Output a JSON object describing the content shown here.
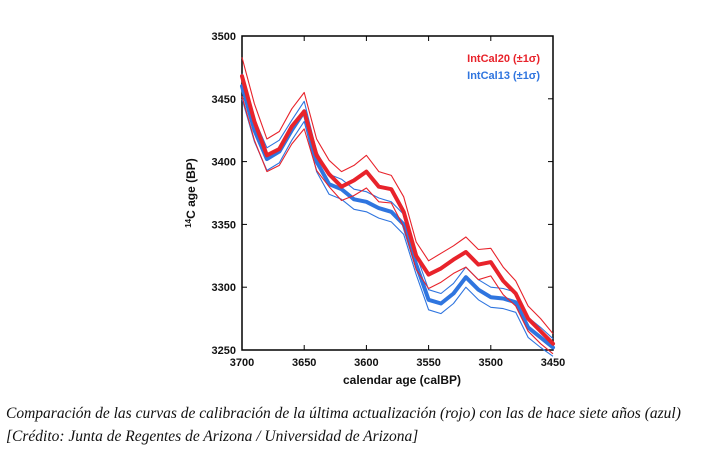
{
  "caption": "Comparación de las curvas de calibración de la última actualización (rojo) con las de hace siete años (azul) [Crédito: Junta de Regentes de Arizona / Universidad de Arizona]",
  "chart_data": {
    "type": "line",
    "title": "",
    "xlabel": "calendar age (calBP)",
    "ylabel_superscript": "14",
    "ylabel": "C age (BP)",
    "xlim": [
      3700,
      3450
    ],
    "ylim": [
      3250,
      3500
    ],
    "xticks": [
      3700,
      3650,
      3600,
      3550,
      3500,
      3450
    ],
    "yticks": [
      3250,
      3300,
      3350,
      3400,
      3450,
      3500
    ],
    "xtick_labels": [
      "3700",
      "3650",
      "3600",
      "3550",
      "3500",
      "3450"
    ],
    "ytick_labels": [
      "3250",
      "3300",
      "3350",
      "3400",
      "3450",
      "3500"
    ],
    "legend_position": "top-right",
    "x": [
      3700,
      3690,
      3680,
      3670,
      3660,
      3650,
      3640,
      3630,
      3620,
      3610,
      3600,
      3590,
      3580,
      3570,
      3560,
      3550,
      3540,
      3530,
      3520,
      3510,
      3500,
      3490,
      3480,
      3470,
      3460,
      3450
    ],
    "series": [
      {
        "name": "IntCal20",
        "legend_label": "IntCal20 (±1σ)",
        "color": "#e8232b",
        "values": [
          3468,
          3432,
          3405,
          3410,
          3428,
          3440,
          3405,
          3390,
          3380,
          3385,
          3392,
          3380,
          3378,
          3360,
          3325,
          3310,
          3315,
          3322,
          3328,
          3318,
          3320,
          3305,
          3295,
          3275,
          3265,
          3255
        ],
        "upper": [
          3483,
          3446,
          3418,
          3424,
          3442,
          3455,
          3418,
          3401,
          3392,
          3397,
          3405,
          3392,
          3389,
          3372,
          3336,
          3321,
          3327,
          3333,
          3340,
          3330,
          3331,
          3316,
          3305,
          3285,
          3275,
          3263
        ],
        "lower": [
          3452,
          3417,
          3392,
          3397,
          3414,
          3426,
          3393,
          3380,
          3369,
          3373,
          3379,
          3368,
          3367,
          3348,
          3314,
          3299,
          3304,
          3311,
          3316,
          3306,
          3309,
          3294,
          3285,
          3265,
          3255,
          3247
        ]
      },
      {
        "name": "IntCal13",
        "legend_label": "IntCal13 (±1σ)",
        "color": "#2f75df",
        "values": [
          3460,
          3425,
          3402,
          3408,
          3425,
          3440,
          3400,
          3382,
          3378,
          3370,
          3368,
          3363,
          3360,
          3350,
          3318,
          3290,
          3287,
          3295,
          3308,
          3298,
          3292,
          3291,
          3288,
          3268,
          3260,
          3252
        ],
        "upper": [
          3470,
          3434,
          3411,
          3417,
          3433,
          3448,
          3408,
          3390,
          3386,
          3378,
          3376,
          3371,
          3368,
          3358,
          3326,
          3298,
          3295,
          3303,
          3316,
          3306,
          3300,
          3299,
          3296,
          3276,
          3268,
          3259
        ],
        "lower": [
          3450,
          3416,
          3393,
          3399,
          3417,
          3432,
          3392,
          3374,
          3370,
          3362,
          3360,
          3355,
          3352,
          3342,
          3310,
          3282,
          3279,
          3287,
          3300,
          3290,
          3284,
          3283,
          3280,
          3260,
          3252,
          3245
        ]
      }
    ]
  }
}
